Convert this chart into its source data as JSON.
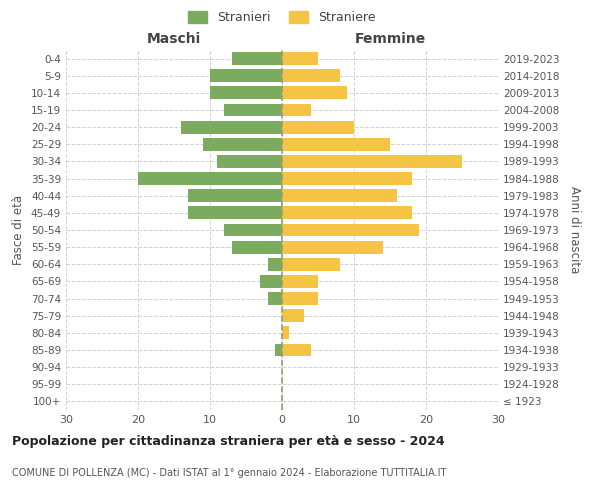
{
  "age_groups": [
    "0-4",
    "5-9",
    "10-14",
    "15-19",
    "20-24",
    "25-29",
    "30-34",
    "35-39",
    "40-44",
    "45-49",
    "50-54",
    "55-59",
    "60-64",
    "65-69",
    "70-74",
    "75-79",
    "80-84",
    "85-89",
    "90-94",
    "95-99",
    "100+"
  ],
  "birth_years": [
    "2019-2023",
    "2014-2018",
    "2009-2013",
    "2004-2008",
    "1999-2003",
    "1994-1998",
    "1989-1993",
    "1984-1988",
    "1979-1983",
    "1974-1978",
    "1969-1973",
    "1964-1968",
    "1959-1963",
    "1954-1958",
    "1949-1953",
    "1944-1948",
    "1939-1943",
    "1934-1938",
    "1929-1933",
    "1924-1928",
    "≤ 1923"
  ],
  "males": [
    7,
    10,
    10,
    8,
    14,
    11,
    9,
    20,
    13,
    13,
    8,
    7,
    2,
    3,
    2,
    0,
    0,
    1,
    0,
    0,
    0
  ],
  "females": [
    5,
    8,
    9,
    4,
    10,
    15,
    25,
    18,
    16,
    18,
    19,
    14,
    8,
    5,
    5,
    3,
    1,
    4,
    0,
    0,
    0
  ],
  "male_color": "#7aab5e",
  "female_color": "#f5c444",
  "background_color": "#ffffff",
  "grid_color": "#cccccc",
  "title": "Popolazione per cittadinanza straniera per età e sesso - 2024",
  "subtitle": "COMUNE DI POLLENZA (MC) - Dati ISTAT al 1° gennaio 2024 - Elaborazione TUTTITALIA.IT",
  "xlabel_left": "Maschi",
  "xlabel_right": "Femmine",
  "ylabel_left": "Fasce di età",
  "ylabel_right": "Anni di nascita",
  "legend_male": "Stranieri",
  "legend_female": "Straniere",
  "xlim": 30,
  "dpi": 100,
  "figsize": [
    6.0,
    5.0
  ]
}
